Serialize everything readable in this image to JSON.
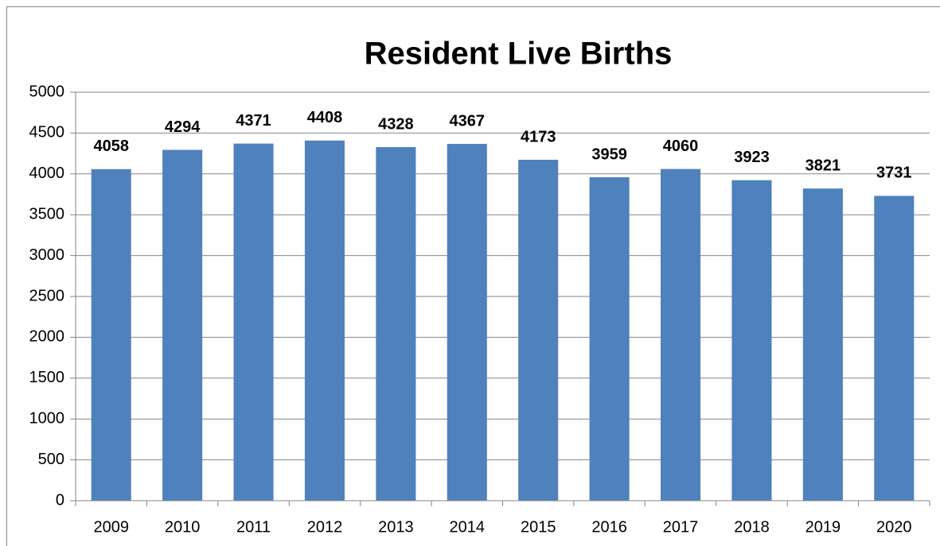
{
  "chart_data": {
    "type": "bar",
    "title": "Resident Live Births",
    "categories": [
      "2009",
      "2010",
      "2011",
      "2012",
      "2013",
      "2014",
      "2015",
      "2016",
      "2017",
      "2018",
      "2019",
      "2020"
    ],
    "values": [
      4058,
      4294,
      4371,
      4408,
      4328,
      4367,
      4173,
      3959,
      4060,
      3923,
      3821,
      3731
    ],
    "color": "#4f81bd",
    "ylim": [
      0,
      5000
    ],
    "yticks": [
      0,
      500,
      1000,
      1500,
      2000,
      2500,
      3000,
      3500,
      4000,
      4500,
      5000
    ],
    "grid": true,
    "data_labels": true
  }
}
